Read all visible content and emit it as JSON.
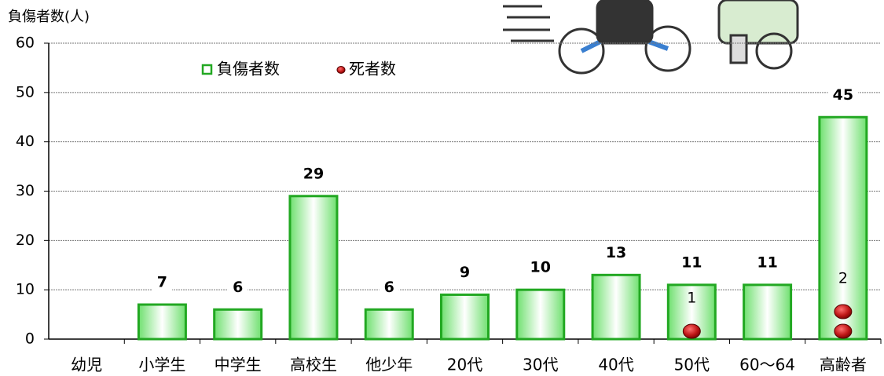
{
  "chart_data": {
    "type": "bar",
    "y_axis_label": "負傷者数(人)",
    "categories": [
      "幼児",
      "小学生",
      "中学生",
      "高校生",
      "他少年",
      "20代",
      "30代",
      "40代",
      "50代",
      "60〜64",
      "高齢者"
    ],
    "series": [
      {
        "name": "負傷者数",
        "color": "#22a822",
        "values": [
          0,
          7,
          6,
          29,
          6,
          9,
          10,
          13,
          11,
          11,
          45
        ]
      },
      {
        "name": "死者数",
        "color": "#b01010",
        "values": [
          null,
          null,
          null,
          null,
          null,
          null,
          null,
          null,
          1,
          null,
          2
        ]
      }
    ],
    "ylim": [
      0,
      60
    ],
    "yticks": [
      0,
      10,
      20,
      30,
      40,
      50,
      60
    ],
    "grid": true
  }
}
